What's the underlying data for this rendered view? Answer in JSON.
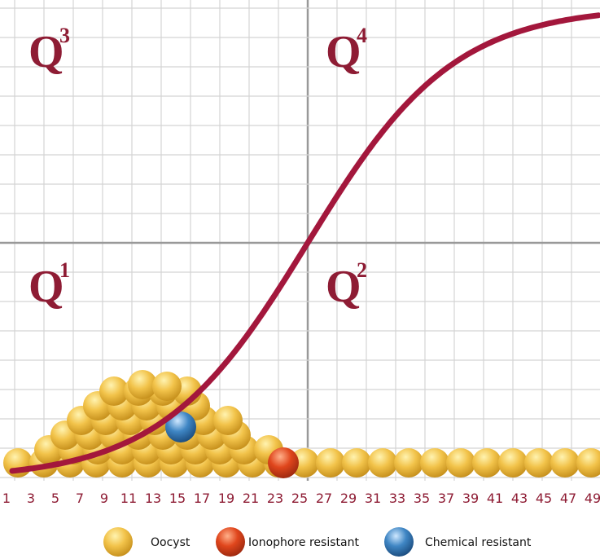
{
  "quadrants": [
    {
      "letter": "Q",
      "number": "3"
    },
    {
      "letter": "Q",
      "number": "4"
    },
    {
      "letter": "Q",
      "number": "1"
    },
    {
      "letter": "Q",
      "number": "2"
    }
  ],
  "x_axis_labels": [
    "1",
    "3",
    "5",
    "7",
    "9",
    "11",
    "13",
    "15",
    "17",
    "19",
    "21",
    "23",
    "25",
    "27",
    "29",
    "31",
    "33",
    "35",
    "37",
    "39",
    "41",
    "43",
    "45",
    "47",
    "49"
  ],
  "legend": [
    "Oocyst",
    "Ionophore resistant",
    "Chemical resistant"
  ]
}
